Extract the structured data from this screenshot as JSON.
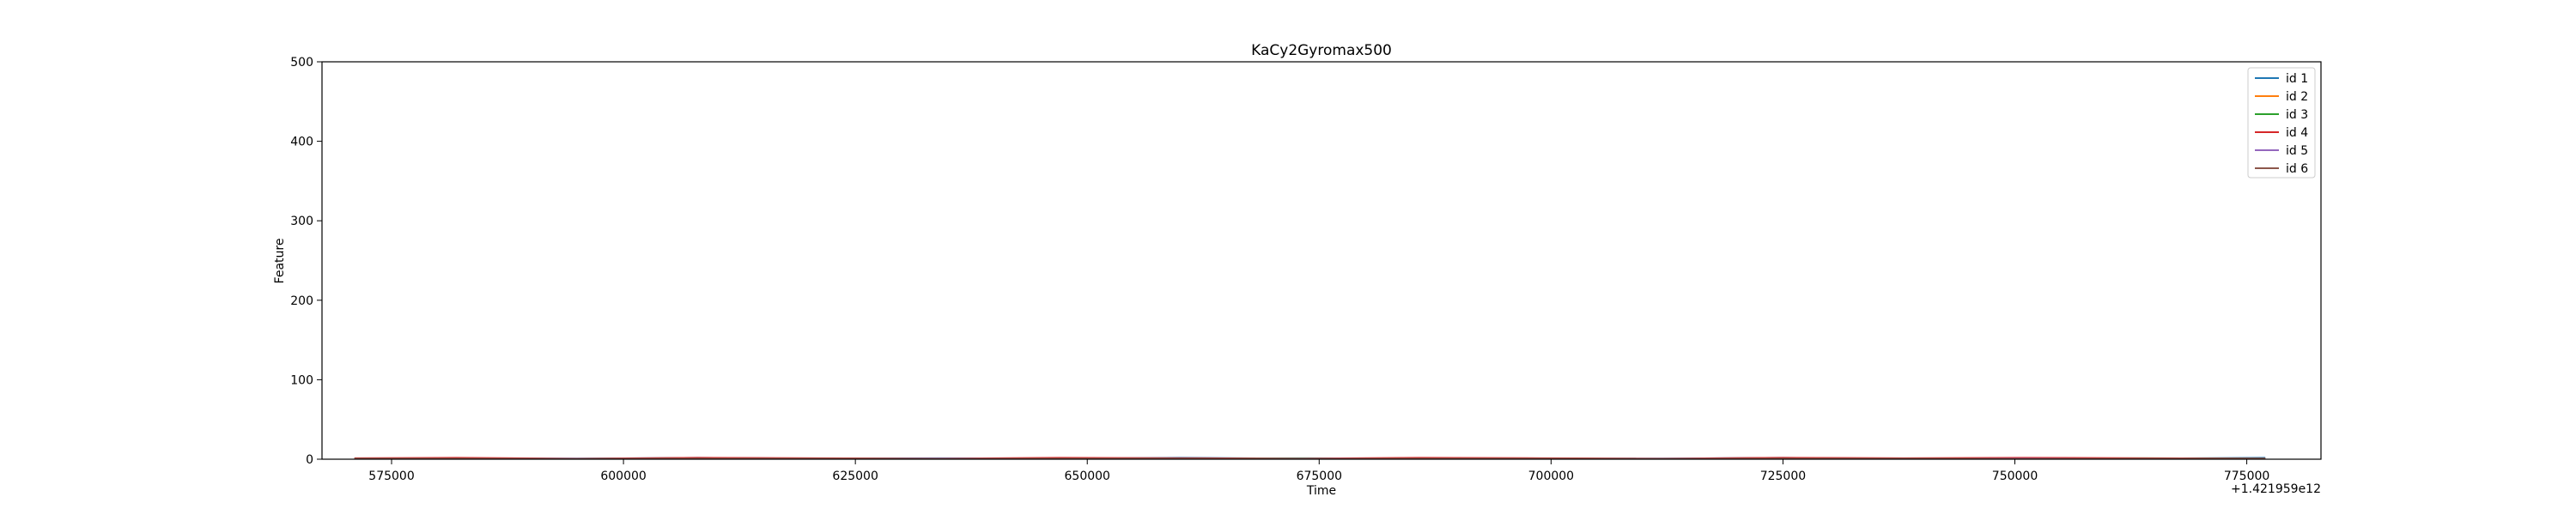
{
  "chart_data": {
    "type": "line",
    "title": "KaCy2Gyromax500",
    "xlabel": "Time",
    "ylabel": "Feature",
    "x_offset_label": "+1.421959e12",
    "xlim": [
      567500,
      783000
    ],
    "ylim": [
      0,
      500
    ],
    "x_ticks": [
      575000,
      600000,
      625000,
      650000,
      675000,
      700000,
      725000,
      750000,
      775000
    ],
    "x_tick_labels": [
      "575000",
      "600000",
      "625000",
      "650000",
      "675000",
      "700000",
      "725000",
      "750000",
      "775000"
    ],
    "y_ticks": [
      0,
      100,
      200,
      300,
      400,
      500
    ],
    "y_tick_labels": [
      "0",
      "100",
      "200",
      "300",
      "400",
      "500"
    ],
    "grid": false,
    "legend_position": "top-right",
    "series": [
      {
        "name": "id 1",
        "color": "#1f77b4",
        "x": [
          571000,
          582000,
          595000,
          608000,
          621000,
          634000,
          647000,
          660000,
          673000,
          686000,
          699000,
          712000,
          725000,
          738000,
          751000,
          764000,
          777000
        ],
        "values": [
          1,
          1.5,
          1,
          2,
          1,
          1.5,
          1,
          2,
          1,
          1.5,
          1,
          1,
          2,
          1,
          1.5,
          1,
          2
        ]
      },
      {
        "name": "id 2",
        "color": "#ff7f0e",
        "x": [
          571000,
          582000,
          595000,
          608000,
          621000,
          634000,
          647000,
          660000,
          673000,
          686000,
          699000,
          712000,
          725000,
          738000,
          751000,
          764000,
          777000
        ],
        "values": [
          0.5,
          1,
          0.5,
          1,
          0.5,
          1,
          0.5,
          1,
          0.5,
          1,
          0.5,
          1,
          0.5,
          1,
          0.5,
          1,
          0.5
        ]
      },
      {
        "name": "id 3",
        "color": "#2ca02c",
        "x": [
          571000,
          582000,
          595000,
          608000,
          621000,
          634000,
          647000,
          660000,
          673000,
          686000,
          699000,
          712000,
          725000,
          738000,
          751000,
          764000,
          777000
        ],
        "values": [
          1,
          0.5,
          1,
          1.5,
          1,
          0.5,
          1,
          1,
          1.5,
          1,
          0.5,
          1,
          1,
          0.5,
          1,
          1.5,
          1
        ]
      },
      {
        "name": "id 4",
        "color": "#d62728",
        "x": [
          571000,
          582000,
          595000,
          608000,
          621000,
          634000,
          647000,
          660000,
          673000,
          686000,
          699000,
          712000,
          725000,
          738000,
          751000,
          764000,
          777000
        ],
        "values": [
          1.5,
          2,
          1,
          2,
          1.5,
          1,
          2,
          1.5,
          1,
          2,
          1.5,
          1,
          2,
          1.5,
          2,
          1.5,
          1
        ]
      },
      {
        "name": "id 5",
        "color": "#9467bd",
        "x": [
          571000,
          582000,
          595000,
          608000,
          621000,
          634000,
          647000,
          660000,
          673000,
          686000,
          699000,
          712000,
          725000,
          738000,
          751000,
          764000,
          777000
        ],
        "values": [
          0.5,
          0.5,
          1,
          0.5,
          0.5,
          1,
          0.5,
          0.5,
          1,
          0.5,
          0.5,
          1,
          0.5,
          0.5,
          1,
          0.5,
          0.5
        ]
      },
      {
        "name": "id 6",
        "color": "#8c564b",
        "x": [
          571000,
          582000,
          595000,
          608000,
          621000,
          634000,
          647000,
          660000,
          673000,
          686000,
          699000,
          712000,
          725000,
          738000,
          751000,
          764000,
          777000
        ],
        "values": [
          1,
          1,
          0.5,
          1,
          1,
          0.5,
          1,
          1,
          0.5,
          1,
          1,
          0.5,
          1,
          1,
          0.5,
          1,
          1
        ]
      }
    ]
  }
}
